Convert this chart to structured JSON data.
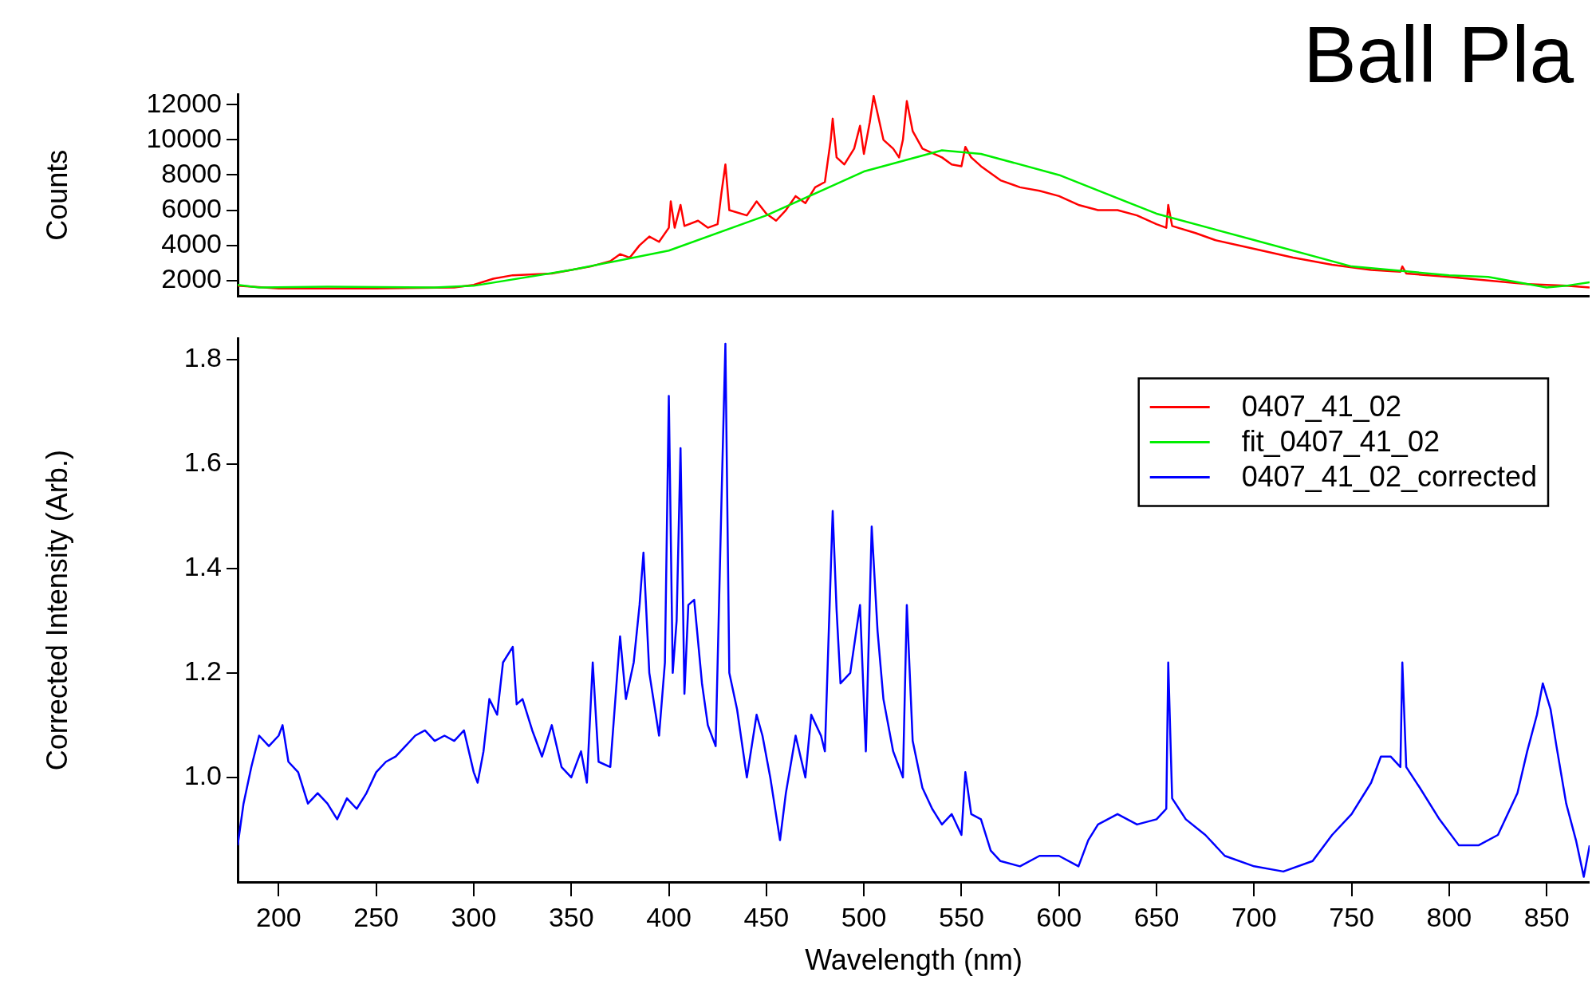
{
  "chart_data": [
    {
      "type": "line",
      "title": "Ball Pla",
      "ylabel": "Counts",
      "xlim": [
        179,
        872
      ],
      "ylim": [
        1100,
        12600
      ],
      "yticks": [
        2000,
        4000,
        6000,
        8000,
        10000,
        12000
      ],
      "tick_labels": "y",
      "grid": false,
      "marker": "none",
      "line_style": "solid",
      "series": [
        {
          "name": "0407_41_02",
          "color": "#ff0000",
          "x": [
            179,
            200,
            250,
            290,
            300,
            310,
            320,
            340,
            350,
            360,
            370,
            375,
            380,
            385,
            390,
            395,
            400,
            401,
            403,
            406,
            408,
            415,
            420,
            425,
            427,
            429,
            431,
            440,
            445,
            450,
            455,
            460,
            465,
            470,
            475,
            480,
            483,
            484,
            486,
            490,
            495,
            498,
            500,
            503,
            505,
            508,
            510,
            515,
            518,
            520,
            522,
            525,
            530,
            540,
            545,
            550,
            552,
            555,
            560,
            570,
            580,
            590,
            600,
            610,
            620,
            630,
            640,
            650,
            655,
            656,
            658,
            670,
            680,
            700,
            720,
            740,
            760,
            775,
            776,
            778,
            800,
            820,
            840,
            860,
            872
          ],
          "values": [
            1700,
            1550,
            1550,
            1600,
            1750,
            2100,
            2300,
            2400,
            2600,
            2800,
            3100,
            3500,
            3300,
            4000,
            4500,
            4200,
            5000,
            6500,
            5000,
            6300,
            5100,
            5400,
            5000,
            5200,
            7000,
            8600,
            6000,
            5700,
            6500,
            5800,
            5400,
            6000,
            6800,
            6400,
            7300,
            7600,
            10000,
            11200,
            9000,
            8600,
            9500,
            10800,
            9200,
            11000,
            12500,
            11000,
            10000,
            9500,
            9000,
            10000,
            12200,
            10500,
            9500,
            9000,
            8600,
            8500,
            9600,
            9000,
            8500,
            7700,
            7300,
            7100,
            6800,
            6300,
            6000,
            6000,
            5700,
            5200,
            5000,
            6300,
            5100,
            4700,
            4300,
            3800,
            3300,
            2900,
            2600,
            2500,
            2800,
            2400,
            2200,
            2000,
            1800,
            1700,
            1600
          ]
        },
        {
          "name": "fit_0407_41_02",
          "color": "#00ee00",
          "x": [
            179,
            190,
            225,
            280,
            300,
            350,
            400,
            450,
            500,
            540,
            560,
            600,
            650,
            700,
            750,
            800,
            820,
            850,
            860,
            872
          ],
          "values": [
            1750,
            1600,
            1650,
            1600,
            1700,
            2600,
            3700,
            5700,
            8200,
            9400,
            9200,
            8000,
            5800,
            4300,
            2800,
            2300,
            2200,
            1600,
            1700,
            1900
          ]
        }
      ]
    },
    {
      "type": "line",
      "xlabel": "Wavelength (nm)",
      "ylabel": "Corrected Intensity (Arb.)",
      "xlim": [
        179,
        872
      ],
      "xticks": [
        200,
        250,
        300,
        350,
        400,
        450,
        500,
        550,
        600,
        650,
        700,
        750,
        800,
        850
      ],
      "ylim": [
        0.8,
        1.84
      ],
      "yticks": [
        {
          "value": 1,
          "label": "1.0"
        },
        1.2,
        1.4,
        1.6,
        1.8
      ],
      "grid": false,
      "legend": "top right",
      "marker": "none",
      "line_style": "solid",
      "series": [
        {
          "name": "0407_41_02_corrected",
          "color": "#0000ff",
          "x": [
            179,
            182,
            186,
            190,
            195,
            200,
            202,
            205,
            210,
            215,
            220,
            225,
            230,
            235,
            240,
            245,
            250,
            255,
            260,
            265,
            270,
            275,
            280,
            285,
            290,
            295,
            300,
            302,
            305,
            308,
            312,
            315,
            320,
            322,
            325,
            330,
            335,
            340,
            345,
            350,
            355,
            358,
            361,
            364,
            370,
            375,
            378,
            382,
            385,
            387,
            390,
            395,
            398,
            400,
            402,
            404,
            406,
            408,
            410,
            413,
            417,
            420,
            424,
            427,
            429,
            431,
            435,
            440,
            445,
            448,
            452,
            457,
            460,
            465,
            470,
            473,
            478,
            480,
            484,
            486,
            488,
            493,
            498,
            501,
            504,
            507,
            510,
            515,
            520,
            522,
            525,
            530,
            535,
            540,
            545,
            550,
            552,
            555,
            560,
            565,
            570,
            580,
            590,
            600,
            610,
            615,
            620,
            630,
            640,
            650,
            655,
            656,
            658,
            665,
            675,
            685,
            700,
            715,
            730,
            740,
            750,
            760,
            765,
            770,
            775,
            776,
            778,
            785,
            795,
            805,
            815,
            825,
            835,
            840,
            845,
            848,
            852,
            855,
            860,
            865,
            869,
            872
          ],
          "values": [
            0.87,
            0.95,
            1.02,
            1.08,
            1.06,
            1.08,
            1.1,
            1.03,
            1.01,
            0.95,
            0.97,
            0.95,
            0.92,
            0.96,
            0.94,
            0.97,
            1.01,
            1.03,
            1.04,
            1.06,
            1.08,
            1.09,
            1.07,
            1.08,
            1.07,
            1.09,
            1.01,
            0.99,
            1.05,
            1.15,
            1.12,
            1.22,
            1.25,
            1.14,
            1.15,
            1.09,
            1.04,
            1.1,
            1.02,
            1,
            1.05,
            0.99,
            1.22,
            1.03,
            1.02,
            1.27,
            1.15,
            1.22,
            1.33,
            1.43,
            1.2,
            1.08,
            1.22,
            1.73,
            1.2,
            1.3,
            1.63,
            1.16,
            1.33,
            1.34,
            1.18,
            1.1,
            1.06,
            1.53,
            1.83,
            1.2,
            1.13,
            1,
            1.12,
            1.08,
            1,
            0.88,
            0.97,
            1.08,
            1,
            1.12,
            1.08,
            1.05,
            1.51,
            1.32,
            1.18,
            1.2,
            1.33,
            1.05,
            1.48,
            1.28,
            1.15,
            1.05,
            1,
            1.33,
            1.07,
            0.98,
            0.94,
            0.91,
            0.93,
            0.89,
            1.01,
            0.93,
            0.92,
            0.86,
            0.84,
            0.83,
            0.85,
            0.85,
            0.83,
            0.88,
            0.91,
            0.93,
            0.91,
            0.92,
            0.94,
            1.22,
            0.96,
            0.92,
            0.89,
            0.85,
            0.83,
            0.82,
            0.84,
            0.89,
            0.93,
            0.99,
            1.04,
            1.04,
            1.02,
            1.22,
            1.02,
            0.98,
            0.92,
            0.87,
            0.87,
            0.89,
            0.97,
            1.05,
            1.12,
            1.18,
            1.13,
            1.06,
            0.95,
            0.88,
            0.81,
            0.87
          ]
        }
      ]
    }
  ]
}
